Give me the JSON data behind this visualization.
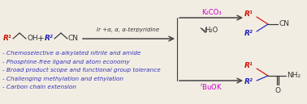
{
  "bg_color": "#f2ede3",
  "bullet_color": "#3333bb",
  "bullet_font_size": 5.2,
  "bullets": [
    "- Chemoselective α-alkylated nitrile and amide",
    "- Phosphine-free ligand and atom economy",
    "- Broad product scope and functional group tolerance",
    "- Challenging methylation and ethylation",
    "- Carbon chain extension"
  ],
  "magenta": "#cc00cc",
  "red": "#cc1100",
  "blue": "#2222bb",
  "black": "#333333",
  "dark": "#444444",
  "k2co3": "K₂CO₃",
  "h2o": "H₂O",
  "buok": "$^t$BuOK",
  "catalyst": "Ir +α, α, α-terpyridine",
  "r1": "R¹",
  "r2": "R²",
  "cn": "CN",
  "oh": "OH",
  "nh2": "NH₂",
  "o_label": "O"
}
